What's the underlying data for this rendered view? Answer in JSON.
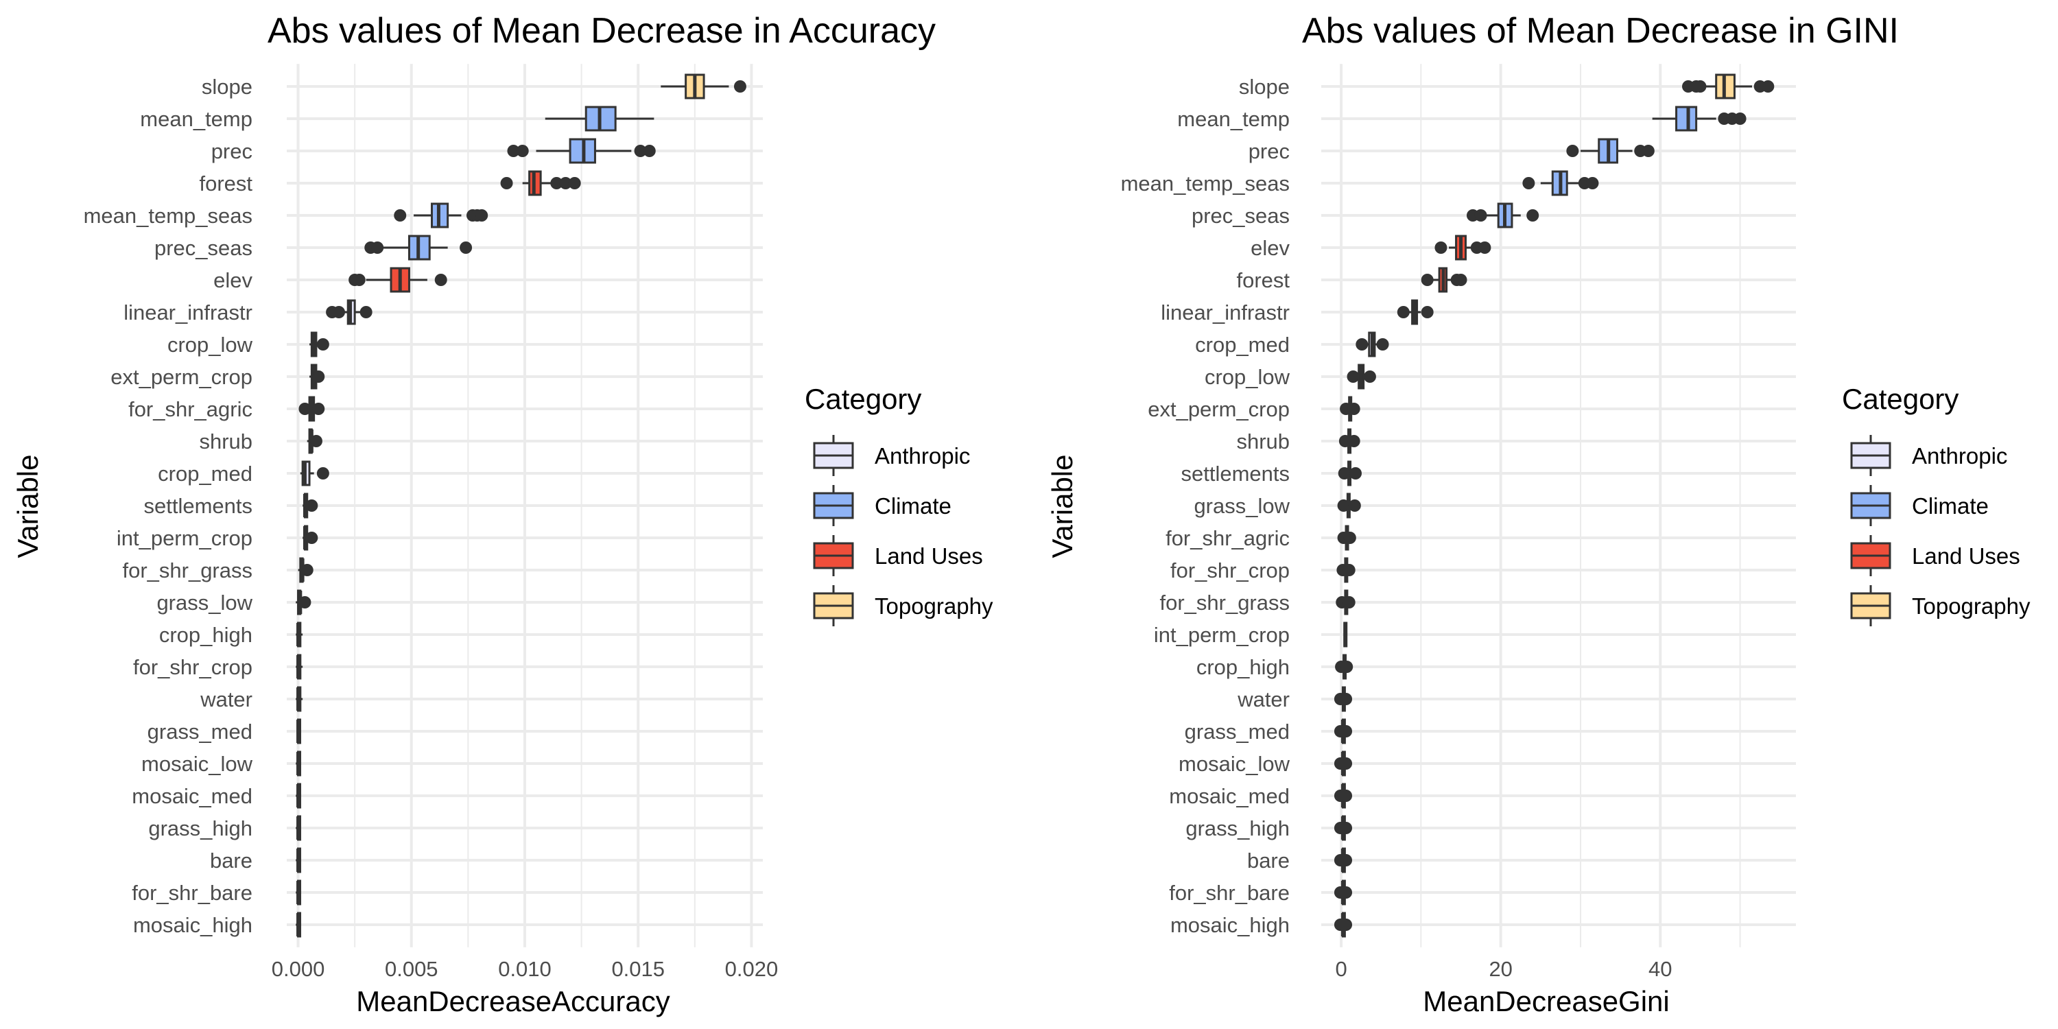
{
  "chart_data": [
    {
      "type": "boxplot",
      "orientation": "horizontal",
      "title": "Abs values of Mean Decrease in Accuracy",
      "xlabel": "MeanDecreaseAccuracy",
      "ylabel": "Variable",
      "xlim": [
        -0.0005,
        0.0205
      ],
      "xticks": [
        0,
        0.005,
        0.01,
        0.015,
        0.02
      ],
      "xtick_labels": [
        "0.000",
        "0.005",
        "0.010",
        "0.015",
        "0.020"
      ],
      "grid": true,
      "legend_position": "right",
      "categories": [
        "slope",
        "mean_temp",
        "prec",
        "forest",
        "mean_temp_seas",
        "prec_seas",
        "elev",
        "linear_infrastr",
        "crop_low",
        "ext_perm_crop",
        "for_shr_agric",
        "shrub",
        "crop_med",
        "settlements",
        "int_perm_crop",
        "for_shr_grass",
        "grass_low",
        "crop_high",
        "for_shr_crop",
        "water",
        "grass_med",
        "mosaic_low",
        "mosaic_med",
        "grass_high",
        "bare",
        "for_shr_bare",
        "mosaic_high"
      ],
      "boxes": [
        {
          "label": "slope",
          "group": "Topography",
          "min": 0.016,
          "q1": 0.0171,
          "median": 0.0175,
          "q3": 0.0179,
          "max": 0.019,
          "outliers": [
            0.0195
          ]
        },
        {
          "label": "mean_temp",
          "group": "Climate",
          "min": 0.0109,
          "q1": 0.0127,
          "median": 0.0133,
          "q3": 0.014,
          "max": 0.0157,
          "outliers": []
        },
        {
          "label": "prec",
          "group": "Climate",
          "min": 0.0105,
          "q1": 0.012,
          "median": 0.0126,
          "q3": 0.0131,
          "max": 0.0147,
          "outliers": [
            0.0095,
            0.0099,
            0.0151,
            0.0155
          ]
        },
        {
          "label": "forest",
          "group": "Land Uses",
          "min": 0.0099,
          "q1": 0.0102,
          "median": 0.0104,
          "q3": 0.0107,
          "max": 0.0112,
          "outliers": [
            0.0092,
            0.0114,
            0.0118,
            0.0122
          ]
        },
        {
          "label": "mean_temp_seas",
          "group": "Climate",
          "min": 0.0051,
          "q1": 0.0059,
          "median": 0.0062,
          "q3": 0.0066,
          "max": 0.0072,
          "outliers": [
            0.0045,
            0.0077,
            0.0079,
            0.0081
          ]
        },
        {
          "label": "prec_seas",
          "group": "Climate",
          "min": 0.0037,
          "q1": 0.0049,
          "median": 0.0053,
          "q3": 0.0058,
          "max": 0.0066,
          "outliers": [
            0.0032,
            0.0035,
            0.0074
          ]
        },
        {
          "label": "elev",
          "group": "Land Uses",
          "min": 0.003,
          "q1": 0.0041,
          "median": 0.0045,
          "q3": 0.0049,
          "max": 0.0057,
          "outliers": [
            0.0025,
            0.0027,
            0.0063
          ]
        },
        {
          "label": "linear_infrastr",
          "group": "Anthropic",
          "min": 0.002,
          "q1": 0.0022,
          "median": 0.0023,
          "q3": 0.0025,
          "max": 0.0028,
          "outliers": [
            0.0015,
            0.0018,
            0.003
          ]
        },
        {
          "label": "crop_low",
          "group": "Anthropic",
          "min": 0.0005,
          "q1": 0.0006,
          "median": 0.0007,
          "q3": 0.0008,
          "max": 0.0009,
          "outliers": [
            0.0011
          ]
        },
        {
          "label": "ext_perm_crop",
          "group": "Anthropic",
          "min": 0.0005,
          "q1": 0.0006,
          "median": 0.0007,
          "q3": 0.0008,
          "max": 0.0009,
          "outliers": [
            0.0009
          ]
        },
        {
          "label": "for_shr_agric",
          "group": "Land Uses",
          "min": 0.0004,
          "q1": 0.0005,
          "median": 0.0006,
          "q3": 0.0007,
          "max": 0.0008,
          "outliers": [
            0.0003,
            0.0009
          ]
        },
        {
          "label": "shrub",
          "group": "Land Uses",
          "min": 0.0004,
          "q1": 0.0005,
          "median": 0.0006,
          "q3": 0.0006,
          "max": 0.0007,
          "outliers": [
            0.0008
          ]
        },
        {
          "label": "crop_med",
          "group": "Anthropic",
          "min": 0.0001,
          "q1": 0.0002,
          "median": 0.0003,
          "q3": 0.0005,
          "max": 0.0007,
          "outliers": [
            0.0011
          ]
        },
        {
          "label": "settlements",
          "group": "Anthropic",
          "min": 0.0002,
          "q1": 0.0003,
          "median": 0.0003,
          "q3": 0.0004,
          "max": 0.0005,
          "outliers": [
            0.0006
          ]
        },
        {
          "label": "int_perm_crop",
          "group": "Anthropic",
          "min": 0.0002,
          "q1": 0.0003,
          "median": 0.0003,
          "q3": 0.0004,
          "max": 0.0005,
          "outliers": [
            0.0006
          ]
        },
        {
          "label": "for_shr_grass",
          "group": "Land Uses",
          "min": 0.0,
          "q1": 0.0001,
          "median": 0.0002,
          "q3": 0.0002,
          "max": 0.0003,
          "outliers": [
            0.0004
          ]
        },
        {
          "label": "grass_low",
          "group": "Land Uses",
          "min": -0.0001,
          "q1": 0.0,
          "median": 0.0001,
          "q3": 0.0001,
          "max": 0.0002,
          "outliers": [
            0.0003
          ]
        },
        {
          "label": "crop_high",
          "group": "Anthropic",
          "min": -0.0001,
          "q1": 0.0,
          "median": 0.0,
          "q3": 0.0001,
          "max": 0.0002,
          "outliers": []
        },
        {
          "label": "for_shr_crop",
          "group": "Land Uses",
          "min": -0.0001,
          "q1": 0.0,
          "median": 0.0,
          "q3": 0.0001,
          "max": 0.0002,
          "outliers": []
        },
        {
          "label": "water",
          "group": "Land Uses",
          "min": -0.0001,
          "q1": 0.0,
          "median": 0.0,
          "q3": 0.0001,
          "max": 0.0002,
          "outliers": []
        },
        {
          "label": "grass_med",
          "group": "Land Uses",
          "min": 0.0,
          "q1": 0.0,
          "median": 0.0,
          "q3": 0.0,
          "max": 0.0001,
          "outliers": []
        },
        {
          "label": "mosaic_low",
          "group": "Land Uses",
          "min": -0.0001,
          "q1": 0.0,
          "median": 0.0,
          "q3": 0.0,
          "max": 0.0001,
          "outliers": []
        },
        {
          "label": "mosaic_med",
          "group": "Land Uses",
          "min": -0.0001,
          "q1": 0.0,
          "median": 0.0,
          "q3": 0.0,
          "max": 0.0001,
          "outliers": []
        },
        {
          "label": "grass_high",
          "group": "Land Uses",
          "min": -0.0001,
          "q1": 0.0,
          "median": 0.0,
          "q3": 0.0,
          "max": 0.0001,
          "outliers": []
        },
        {
          "label": "bare",
          "group": "Land Uses",
          "min": -0.0001,
          "q1": 0.0,
          "median": 0.0,
          "q3": 0.0,
          "max": 0.0001,
          "outliers": []
        },
        {
          "label": "for_shr_bare",
          "group": "Land Uses",
          "min": -0.0001,
          "q1": 0.0,
          "median": 0.0,
          "q3": 0.0,
          "max": 0.0001,
          "outliers": []
        },
        {
          "label": "mosaic_high",
          "group": "Land Uses",
          "min": -0.0001,
          "q1": 0.0,
          "median": 0.0,
          "q3": 0.0,
          "max": 0.0001,
          "outliers": []
        }
      ]
    },
    {
      "type": "boxplot",
      "orientation": "horizontal",
      "title": "Abs values of Mean Decrease in GINI",
      "xlabel": "MeanDecreaseGini",
      "ylabel": "Variable",
      "xlim": [
        -2.5,
        57
      ],
      "xticks": [
        0,
        20,
        40
      ],
      "xtick_labels": [
        "0",
        "20",
        "40"
      ],
      "grid": true,
      "legend_position": "right",
      "categories": [
        "slope",
        "mean_temp",
        "prec",
        "mean_temp_seas",
        "prec_seas",
        "elev",
        "forest",
        "linear_infrastr",
        "crop_med",
        "crop_low",
        "ext_perm_crop",
        "shrub",
        "settlements",
        "grass_low",
        "for_shr_agric",
        "for_shr_crop",
        "for_shr_grass",
        "int_perm_crop",
        "crop_high",
        "water",
        "grass_med",
        "mosaic_low",
        "mosaic_med",
        "grass_high",
        "bare",
        "for_shr_bare",
        "mosaic_high"
      ],
      "boxes": [
        {
          "label": "slope",
          "group": "Topography",
          "min": 45,
          "q1": 47,
          "median": 48,
          "q3": 49.3,
          "max": 51.5,
          "outliers": [
            43.5,
            44.5,
            45,
            52.5,
            53.5
          ]
        },
        {
          "label": "mean_temp",
          "group": "Climate",
          "min": 39,
          "q1": 42,
          "median": 43.5,
          "q3": 44.5,
          "max": 47,
          "outliers": [
            48,
            49,
            50
          ]
        },
        {
          "label": "prec",
          "group": "Climate",
          "min": 30,
          "q1": 32.3,
          "median": 33.5,
          "q3": 34.6,
          "max": 36.5,
          "outliers": [
            29,
            37.5,
            38.5
          ]
        },
        {
          "label": "mean_temp_seas",
          "group": "Climate",
          "min": 25,
          "q1": 26.5,
          "median": 27.5,
          "q3": 28.3,
          "max": 30,
          "outliers": [
            23.5,
            30.5,
            31.5
          ]
        },
        {
          "label": "prec_seas",
          "group": "Climate",
          "min": 18,
          "q1": 19.7,
          "median": 20.5,
          "q3": 21.4,
          "max": 22.5,
          "outliers": [
            16.5,
            17.5,
            24
          ]
        },
        {
          "label": "elev",
          "group": "Land Uses",
          "min": 13.5,
          "q1": 14.4,
          "median": 15,
          "q3": 15.6,
          "max": 16.5,
          "outliers": [
            12.5,
            17,
            18
          ]
        },
        {
          "label": "forest",
          "group": "Land Uses",
          "min": 11.5,
          "q1": 12.3,
          "median": 12.8,
          "q3": 13.2,
          "max": 14,
          "outliers": [
            10.8,
            14.5,
            15
          ]
        },
        {
          "label": "linear_infrastr",
          "group": "Anthropic",
          "min": 8.5,
          "q1": 8.9,
          "median": 9.2,
          "q3": 9.5,
          "max": 10,
          "outliers": [
            7.8,
            10.8
          ]
        },
        {
          "label": "crop_med",
          "group": "Anthropic",
          "min": 3,
          "q1": 3.5,
          "median": 3.9,
          "q3": 4.2,
          "max": 4.8,
          "outliers": [
            2.6,
            5.2
          ]
        },
        {
          "label": "crop_low",
          "group": "Anthropic",
          "min": 1.8,
          "q1": 2.2,
          "median": 2.5,
          "q3": 2.8,
          "max": 3.2,
          "outliers": [
            1.5,
            3.6
          ]
        },
        {
          "label": "ext_perm_crop",
          "group": "Anthropic",
          "min": 0.8,
          "q1": 1.0,
          "median": 1.1,
          "q3": 1.2,
          "max": 1.4,
          "outliers": [
            0.6,
            1.6
          ]
        },
        {
          "label": "shrub",
          "group": "Land Uses",
          "min": 0.8,
          "q1": 0.9,
          "median": 1.0,
          "q3": 1.1,
          "max": 1.3,
          "outliers": [
            0.5,
            1.6
          ]
        },
        {
          "label": "settlements",
          "group": "Anthropic",
          "min": 0.7,
          "q1": 0.9,
          "median": 1.0,
          "q3": 1.1,
          "max": 1.4,
          "outliers": [
            0.4,
            1.8
          ]
        },
        {
          "label": "grass_low",
          "group": "Land Uses",
          "min": 0.6,
          "q1": 0.8,
          "median": 0.9,
          "q3": 1.0,
          "max": 1.3,
          "outliers": [
            0.3,
            1.7
          ]
        },
        {
          "label": "for_shr_agric",
          "group": "Land Uses",
          "min": 0.5,
          "q1": 0.6,
          "median": 0.7,
          "q3": 0.8,
          "max": 0.9,
          "outliers": [
            0.3,
            1.1
          ]
        },
        {
          "label": "for_shr_crop",
          "group": "Land Uses",
          "min": 0.4,
          "q1": 0.5,
          "median": 0.6,
          "q3": 0.7,
          "max": 0.8,
          "outliers": [
            0.2,
            1.0
          ]
        },
        {
          "label": "for_shr_grass",
          "group": "Land Uses",
          "min": 0.3,
          "q1": 0.5,
          "median": 0.6,
          "q3": 0.7,
          "max": 0.8,
          "outliers": [
            0.1,
            1.0
          ]
        },
        {
          "label": "int_perm_crop",
          "group": "Anthropic",
          "min": 0.3,
          "q1": 0.4,
          "median": 0.5,
          "q3": 0.5,
          "max": 0.6,
          "outliers": []
        },
        {
          "label": "crop_high",
          "group": "Anthropic",
          "min": 0.2,
          "q1": 0.3,
          "median": 0.4,
          "q3": 0.4,
          "max": 0.5,
          "outliers": [
            0.0,
            0.7
          ]
        },
        {
          "label": "water",
          "group": "Land Uses",
          "min": 0.1,
          "q1": 0.2,
          "median": 0.3,
          "q3": 0.3,
          "max": 0.4,
          "outliers": [
            -0.1,
            0.6
          ]
        },
        {
          "label": "grass_med",
          "group": "Land Uses",
          "min": 0.1,
          "q1": 0.2,
          "median": 0.2,
          "q3": 0.3,
          "max": 0.4,
          "outliers": [
            -0.1,
            0.6
          ]
        },
        {
          "label": "mosaic_low",
          "group": "Land Uses",
          "min": 0.1,
          "q1": 0.2,
          "median": 0.2,
          "q3": 0.3,
          "max": 0.4,
          "outliers": [
            -0.1,
            0.6
          ]
        },
        {
          "label": "mosaic_med",
          "group": "Land Uses",
          "min": 0.1,
          "q1": 0.2,
          "median": 0.2,
          "q3": 0.3,
          "max": 0.4,
          "outliers": [
            -0.1,
            0.6
          ]
        },
        {
          "label": "grass_high",
          "group": "Land Uses",
          "min": 0.1,
          "q1": 0.2,
          "median": 0.2,
          "q3": 0.3,
          "max": 0.4,
          "outliers": [
            -0.1,
            0.6
          ]
        },
        {
          "label": "bare",
          "group": "Land Uses",
          "min": 0.1,
          "q1": 0.2,
          "median": 0.2,
          "q3": 0.3,
          "max": 0.4,
          "outliers": [
            -0.1,
            0.6
          ]
        },
        {
          "label": "for_shr_bare",
          "group": "Land Uses",
          "min": 0.1,
          "q1": 0.2,
          "median": 0.2,
          "q3": 0.3,
          "max": 0.4,
          "outliers": [
            -0.1,
            0.6
          ]
        },
        {
          "label": "mosaic_high",
          "group": "Land Uses",
          "min": 0.1,
          "q1": 0.2,
          "median": 0.2,
          "q3": 0.3,
          "max": 0.4,
          "outliers": [
            -0.1,
            0.6
          ]
        }
      ]
    }
  ],
  "legend": {
    "title": "Category",
    "items": [
      {
        "label": "Anthropic",
        "color": "#e6e6fa"
      },
      {
        "label": "Climate",
        "color": "#8fb3f5"
      },
      {
        "label": "Land Uses",
        "color": "#ef4e3a"
      },
      {
        "label": "Topography",
        "color": "#ffdb99"
      }
    ]
  },
  "colors": {
    "Anthropic": "#e6e6fa",
    "Climate": "#8fb3f5",
    "Land Uses": "#ef4e3a",
    "Topography": "#ffdb99",
    "outline": "#333333",
    "grid": "#ebebeb"
  }
}
